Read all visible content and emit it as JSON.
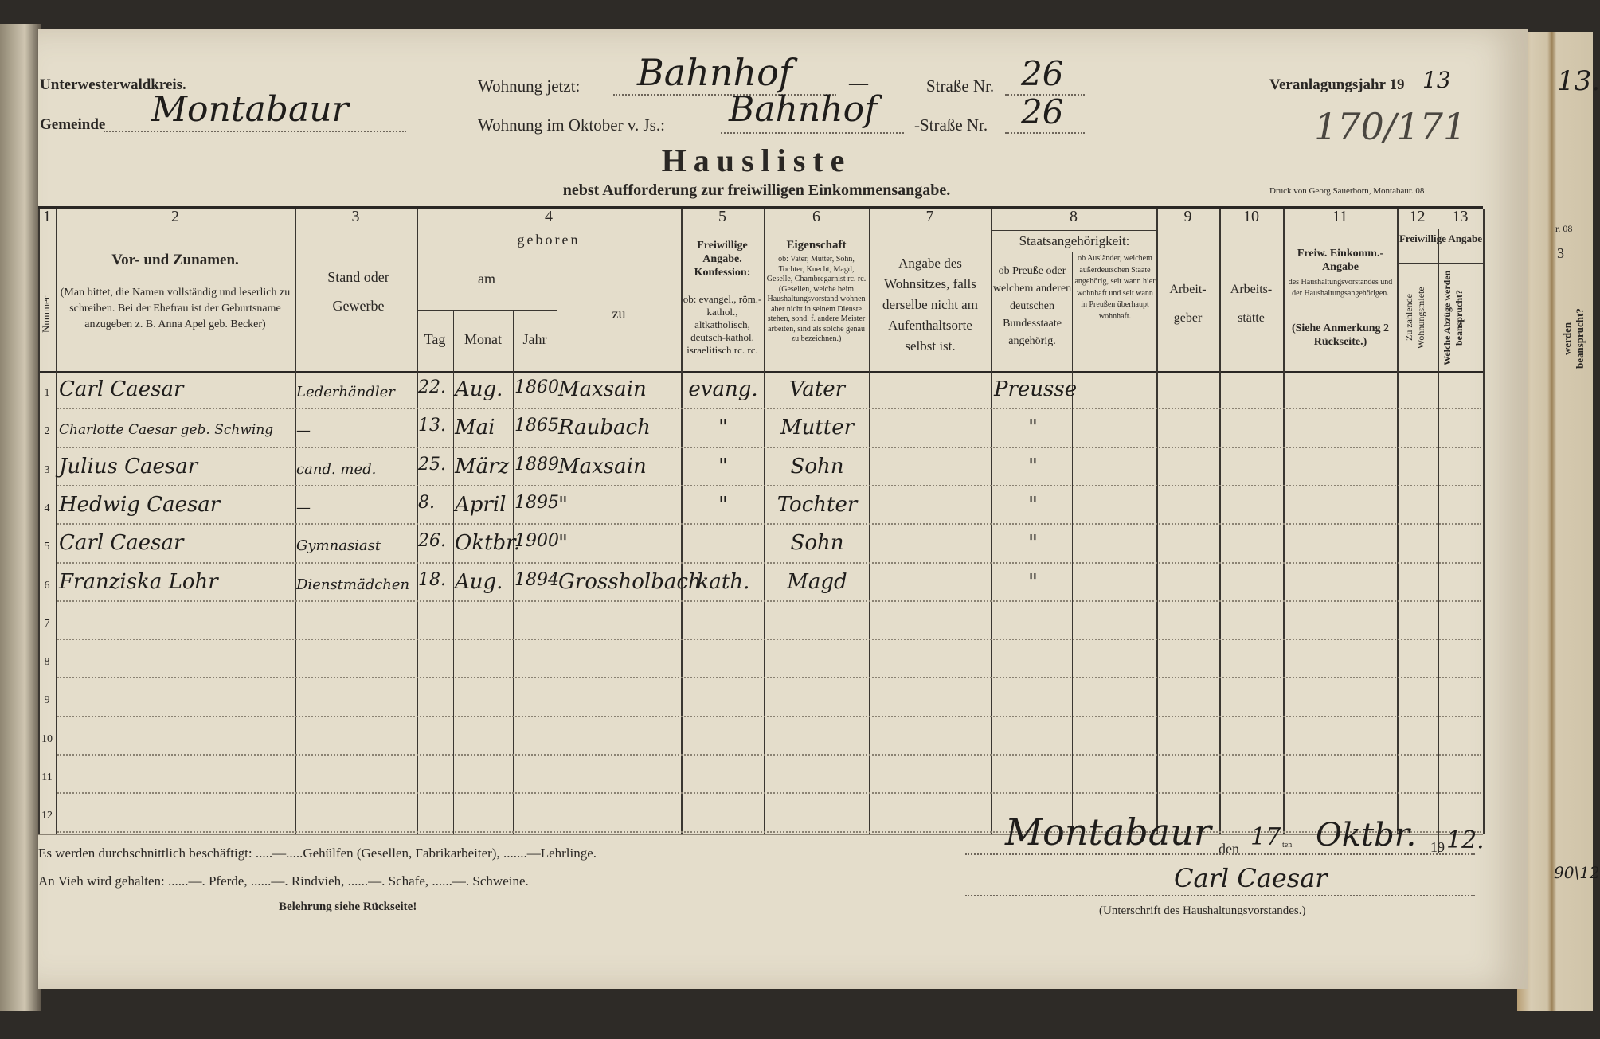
{
  "header": {
    "district": "Unterwesterwaldkreis.",
    "municipality_label": "Gemeinde",
    "municipality_value": "Montabaur",
    "residence_now_label": "Wohnung jetzt:",
    "residence_now_value": "Bahnhof",
    "residence_now_dash": "—",
    "street_label_1": "Straße Nr.",
    "street_no_1": "26",
    "residence_oct_label": "Wohnung im Oktober v. Js.:",
    "residence_oct_value": "Bahnhof",
    "street_label_2": "-Straße Nr.",
    "street_no_2": "26",
    "assessment_year_label": "Veranlagungsjahr 19",
    "assessment_year_value": "13",
    "ref_number": "170/171",
    "title": "Hausliste",
    "subtitle": "nebst Aufforderung zur freiwilligen Einkommensangabe.",
    "printer": "Druck von Georg Sauerborn, Montabaur. 08"
  },
  "table": {
    "col_numbers": [
      "1",
      "2",
      "3",
      "4",
      "5",
      "6",
      "7",
      "8",
      "9",
      "10",
      "11",
      "12",
      "13"
    ],
    "col1_label": "Nummer",
    "col2_title": "Vor- und Zunamen.",
    "col2_note": "(Man bittet, die Namen vollständig und leserlich zu schreiben. Bei der Ehefrau ist der Geburtsname anzugeben z. B. Anna Apel geb. Becker)",
    "col3": "Stand oder Gewerbe",
    "col4_geboren": "geboren",
    "col4_am": "am",
    "col4_tag": "Tag",
    "col4_monat": "Monat",
    "col4_jahr": "Jahr",
    "col4_zu": "zu",
    "col5_title": "Freiwillige Angabe. Konfession:",
    "col5_note": "ob: evangel., röm.-kathol., altkatholisch, deutsch-kathol. israelitisch rc. rc.",
    "col6_title": "Eigenschaft",
    "col6_note": "ob: Vater, Mutter, Sohn, Tochter, Knecht, Magd, Geselle, Chambregarnist rc. rc. (Gesellen, welche beim Haushaltungsvorstand wohnen aber nicht in seinem Dienste stehen, sond. f. andere Meister arbeiten, sind als solche genau zu bezeichnen.)",
    "col7": "Angabe des Wohnsitzes, falls derselbe nicht am Aufenthaltsorte selbst ist.",
    "col8_title": "Staatsangehörigkeit:",
    "col8a": "ob Preuße oder welchem anderen deutschen Bundesstaate angehörig.",
    "col8b": "ob Ausländer, welchem außerdeutschen Staate angehörig, seit wann hier wohnhaft und seit wann in Preußen überhaupt wohnhaft.",
    "col9": "Arbeit-geber",
    "col10": "Arbeits-stätte",
    "col11_title": "Freiw. Einkomm.-Angabe",
    "col11_note": "des Haushaltungsvorstandes und der Haushaltungsangehörigen.",
    "col11_ref": "(Siehe Anmerkung 2 Rückseite.)",
    "col12_13_title": "Freiwillige Angabe",
    "col12": "Zu zahlende Wohnungsmiete",
    "col13": "Welche Abzüge werden beansprucht?",
    "row_numbers": [
      "1",
      "2",
      "3",
      "4",
      "5",
      "6",
      "7",
      "8",
      "9",
      "10",
      "11",
      "12"
    ],
    "rows": [
      {
        "name": "Carl Caesar",
        "occupation": "Lederhändler",
        "day": "22.",
        "month": "Aug.",
        "year": "1860",
        "place": "Maxsain",
        "religion": "evang.",
        "relation": "Vater",
        "residence": "",
        "citizenship": "Preusse"
      },
      {
        "name": "Charlotte Caesar geb. Schwing",
        "occupation": "—",
        "day": "13.",
        "month": "Mai",
        "year": "1865",
        "place": "Raubach",
        "religion": "\"",
        "relation": "Mutter",
        "residence": "",
        "citizenship": "\""
      },
      {
        "name": "Julius Caesar",
        "occupation": "cand. med.",
        "day": "25.",
        "month": "März",
        "year": "1889",
        "place": "Maxsain",
        "religion": "\"",
        "relation": "Sohn",
        "residence": "",
        "citizenship": "\""
      },
      {
        "name": "Hedwig Caesar",
        "occupation": "—",
        "day": "8.",
        "month": "April",
        "year": "1895",
        "place": "\"",
        "religion": "\"",
        "relation": "Tochter",
        "residence": "",
        "citizenship": "\""
      },
      {
        "name": "Carl Caesar",
        "occupation": "Gymnasiast",
        "day": "26.",
        "month": "Oktbr.",
        "year": "1900",
        "place": "\"",
        "religion": "",
        "relation": "Sohn",
        "residence": "",
        "citizenship": "\""
      },
      {
        "name": "Franziska Lohr",
        "occupation": "Dienstmädchen",
        "day": "18.",
        "month": "Aug.",
        "year": "1894",
        "place": "Grossholbach",
        "religion": "kath.",
        "relation": "Magd",
        "residence": "",
        "citizenship": "\""
      }
    ]
  },
  "footer": {
    "employed_line": "Es werden durchschnittlich beschäftigt: .....—.....Gehülfen (Gesellen, Fabrikarbeiter), .......—Lehrlinge.",
    "livestock_line": "An Vieh wird gehalten: ......—. Pferde, ......—. Rindvieh, ......—. Schafe, ......—. Schweine.",
    "instructions": "Belehrung siehe Rückseite!",
    "place": "Montabaur",
    "den": "den",
    "day": "17",
    "ten": "ten",
    "month": "Oktbr.",
    "year_prefix": "19",
    "year": "12.",
    "signature": "Carl Caesar",
    "signature_label": "(Unterschrift des Haushaltungsvorstandes.)"
  },
  "next_page": {
    "number": "13.",
    "printer_fragment": "r. 08",
    "header_fragment": "3",
    "col_fragment": "werden beansprucht?",
    "footer_fragment": "90\\12"
  },
  "colors": {
    "paper": "#e4ddcb",
    "ink": "#2a2724",
    "handwriting": "#1f1d1b",
    "background": "#2e2b27"
  }
}
